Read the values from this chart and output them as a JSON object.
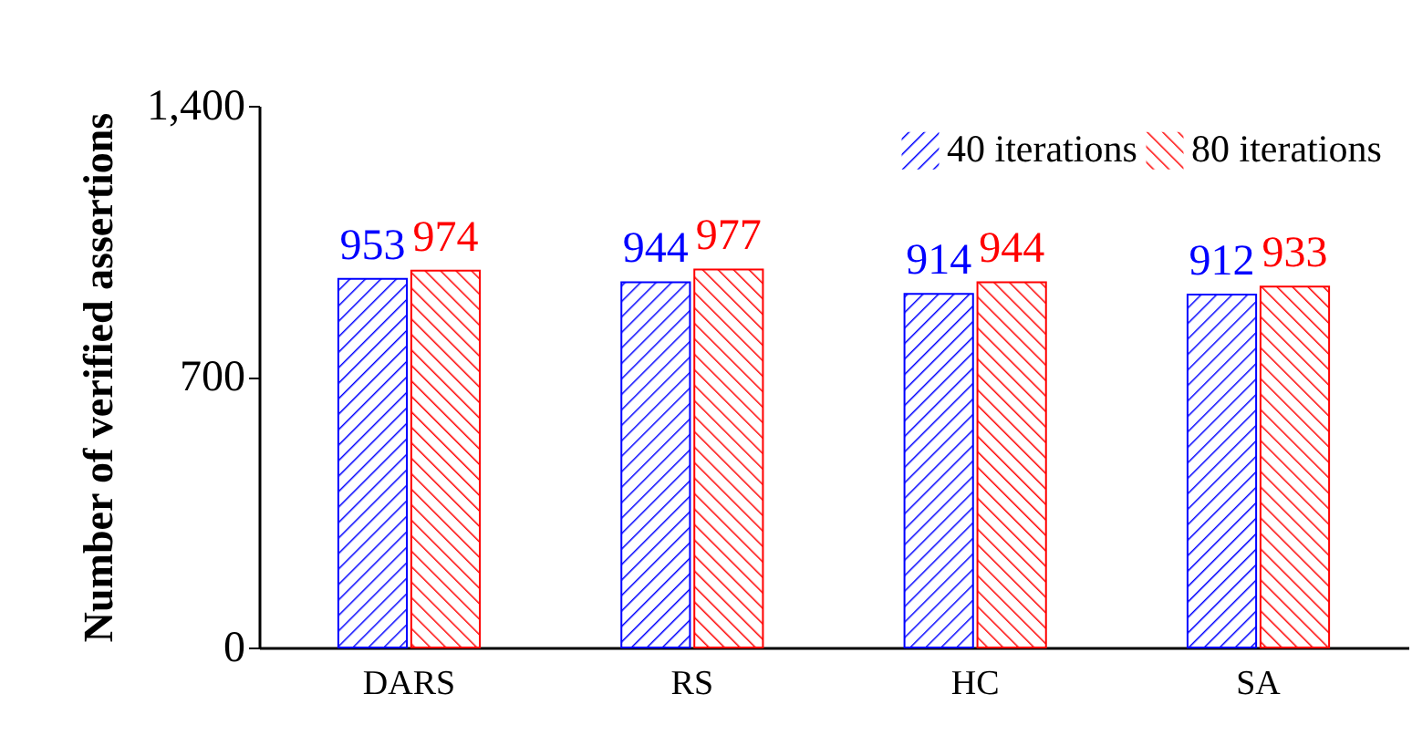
{
  "chart_data": {
    "type": "bar",
    "ylabel": "Number of verified assertions",
    "categories": [
      "DARS",
      "RS",
      "HC",
      "SA"
    ],
    "series": [
      {
        "name": "40 iterations",
        "color": "#0000ff",
        "values": [
          953,
          944,
          914,
          912
        ]
      },
      {
        "name": "80 iterations",
        "color": "#ff0000",
        "values": [
          974,
          977,
          944,
          933
        ]
      }
    ],
    "ylim": [
      0,
      1400
    ],
    "yticks": [
      0,
      700,
      {
        "value": 1400,
        "label": "1,400"
      }
    ],
    "data_labels": true,
    "legend": "top right",
    "grid": false
  }
}
